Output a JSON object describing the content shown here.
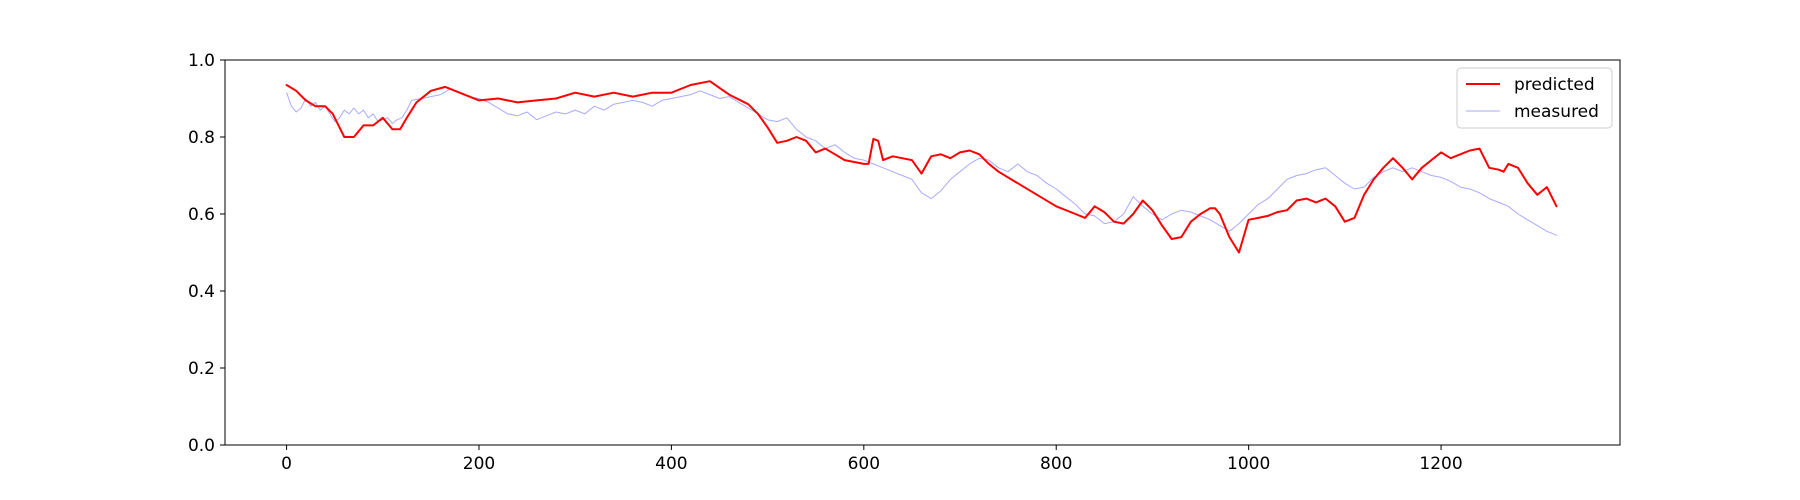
{
  "chart_data": {
    "type": "line",
    "title": "",
    "xlabel": "",
    "ylabel": "",
    "xlim": [
      -64,
      1386
    ],
    "ylim": [
      0.0,
      1.0
    ],
    "xticks": [
      0,
      200,
      400,
      600,
      800,
      1000,
      1200
    ],
    "xtick_labels": [
      "0",
      "200",
      "400",
      "600",
      "800",
      "1000",
      "1200"
    ],
    "yticks": [
      0.0,
      0.2,
      0.4,
      0.6,
      0.8,
      1.0
    ],
    "ytick_labels": [
      "0.0",
      "0.2",
      "0.4",
      "0.6",
      "0.8",
      "1.0"
    ],
    "grid": false,
    "legend_position": "top-right",
    "series": [
      {
        "name": "predicted",
        "color": "#ff0000",
        "x": [
          0,
          10,
          20,
          30,
          40,
          48,
          55,
          60,
          70,
          80,
          90,
          100,
          110,
          118,
          125,
          135,
          150,
          165,
          180,
          200,
          220,
          240,
          260,
          280,
          300,
          320,
          340,
          360,
          380,
          400,
          420,
          440,
          460,
          480,
          490,
          500,
          510,
          520,
          530,
          540,
          550,
          560,
          570,
          580,
          590,
          600,
          605,
          610,
          615,
          620,
          630,
          640,
          650,
          660,
          670,
          680,
          690,
          700,
          710,
          720,
          730,
          740,
          760,
          780,
          800,
          820,
          830,
          840,
          850,
          860,
          870,
          880,
          890,
          900,
          910,
          920,
          930,
          940,
          950,
          960,
          965,
          970,
          980,
          990,
          1000,
          1010,
          1020,
          1030,
          1040,
          1050,
          1060,
          1070,
          1080,
          1090,
          1100,
          1110,
          1120,
          1130,
          1140,
          1150,
          1160,
          1170,
          1180,
          1190,
          1200,
          1210,
          1220,
          1230,
          1240,
          1250,
          1260,
          1265,
          1270,
          1280,
          1290,
          1300,
          1310,
          1320
        ],
        "values": [
          0.935,
          0.92,
          0.895,
          0.88,
          0.88,
          0.86,
          0.825,
          0.8,
          0.8,
          0.83,
          0.83,
          0.85,
          0.82,
          0.82,
          0.85,
          0.89,
          0.92,
          0.93,
          0.915,
          0.895,
          0.9,
          0.89,
          0.895,
          0.9,
          0.915,
          0.905,
          0.915,
          0.905,
          0.915,
          0.915,
          0.935,
          0.945,
          0.91,
          0.885,
          0.86,
          0.825,
          0.785,
          0.79,
          0.8,
          0.79,
          0.76,
          0.77,
          0.755,
          0.74,
          0.735,
          0.73,
          0.73,
          0.795,
          0.79,
          0.74,
          0.75,
          0.745,
          0.74,
          0.705,
          0.75,
          0.755,
          0.745,
          0.76,
          0.765,
          0.755,
          0.73,
          0.71,
          0.68,
          0.65,
          0.62,
          0.6,
          0.59,
          0.62,
          0.605,
          0.58,
          0.575,
          0.6,
          0.635,
          0.61,
          0.57,
          0.535,
          0.54,
          0.58,
          0.6,
          0.615,
          0.615,
          0.6,
          0.54,
          0.5,
          0.585,
          0.59,
          0.595,
          0.605,
          0.61,
          0.635,
          0.64,
          0.63,
          0.64,
          0.62,
          0.58,
          0.59,
          0.65,
          0.69,
          0.72,
          0.745,
          0.72,
          0.69,
          0.72,
          0.74,
          0.76,
          0.745,
          0.755,
          0.765,
          0.77,
          0.72,
          0.715,
          0.71,
          0.73,
          0.72,
          0.68,
          0.65,
          0.67,
          0.62
        ]
      },
      {
        "name": "measured",
        "color": "#aaaaff",
        "x": [
          0,
          5,
          10,
          15,
          20,
          25,
          30,
          35,
          40,
          45,
          50,
          55,
          60,
          65,
          70,
          75,
          80,
          85,
          90,
          95,
          100,
          105,
          110,
          115,
          120,
          125,
          130,
          140,
          150,
          160,
          170,
          180,
          190,
          200,
          210,
          220,
          230,
          240,
          250,
          260,
          270,
          280,
          290,
          300,
          310,
          320,
          330,
          340,
          350,
          360,
          370,
          380,
          390,
          400,
          410,
          420,
          430,
          440,
          450,
          460,
          470,
          480,
          490,
          500,
          510,
          520,
          530,
          540,
          550,
          560,
          570,
          580,
          590,
          600,
          610,
          620,
          630,
          640,
          650,
          660,
          670,
          680,
          690,
          700,
          710,
          720,
          730,
          740,
          750,
          760,
          770,
          780,
          790,
          800,
          810,
          820,
          830,
          840,
          850,
          860,
          870,
          880,
          890,
          900,
          910,
          920,
          930,
          940,
          950,
          960,
          970,
          980,
          990,
          1000,
          1010,
          1020,
          1030,
          1040,
          1050,
          1060,
          1070,
          1080,
          1090,
          1100,
          1110,
          1120,
          1130,
          1140,
          1150,
          1160,
          1170,
          1180,
          1190,
          1200,
          1210,
          1220,
          1230,
          1240,
          1250,
          1260,
          1270,
          1280,
          1290,
          1300,
          1310,
          1320
        ],
        "values": [
          0.915,
          0.88,
          0.865,
          0.875,
          0.9,
          0.88,
          0.89,
          0.87,
          0.88,
          0.86,
          0.84,
          0.85,
          0.87,
          0.86,
          0.875,
          0.86,
          0.87,
          0.85,
          0.86,
          0.84,
          0.845,
          0.85,
          0.835,
          0.845,
          0.85,
          0.87,
          0.895,
          0.9,
          0.905,
          0.91,
          0.925,
          0.915,
          0.905,
          0.9,
          0.89,
          0.875,
          0.86,
          0.855,
          0.865,
          0.845,
          0.855,
          0.865,
          0.86,
          0.87,
          0.86,
          0.88,
          0.87,
          0.885,
          0.89,
          0.895,
          0.89,
          0.88,
          0.895,
          0.9,
          0.905,
          0.91,
          0.92,
          0.91,
          0.9,
          0.905,
          0.89,
          0.875,
          0.86,
          0.845,
          0.84,
          0.85,
          0.82,
          0.8,
          0.79,
          0.77,
          0.78,
          0.76,
          0.745,
          0.74,
          0.73,
          0.72,
          0.71,
          0.7,
          0.69,
          0.655,
          0.64,
          0.66,
          0.69,
          0.71,
          0.73,
          0.745,
          0.74,
          0.72,
          0.71,
          0.73,
          0.71,
          0.7,
          0.68,
          0.665,
          0.645,
          0.625,
          0.6,
          0.595,
          0.575,
          0.58,
          0.6,
          0.645,
          0.62,
          0.6,
          0.585,
          0.6,
          0.61,
          0.605,
          0.595,
          0.585,
          0.57,
          0.555,
          0.575,
          0.6,
          0.625,
          0.64,
          0.665,
          0.69,
          0.7,
          0.705,
          0.715,
          0.72,
          0.7,
          0.68,
          0.665,
          0.67,
          0.695,
          0.71,
          0.72,
          0.71,
          0.72,
          0.71,
          0.7,
          0.695,
          0.685,
          0.67,
          0.665,
          0.655,
          0.64,
          0.63,
          0.62,
          0.6,
          0.585,
          0.57,
          0.555,
          0.545
        ]
      }
    ]
  }
}
